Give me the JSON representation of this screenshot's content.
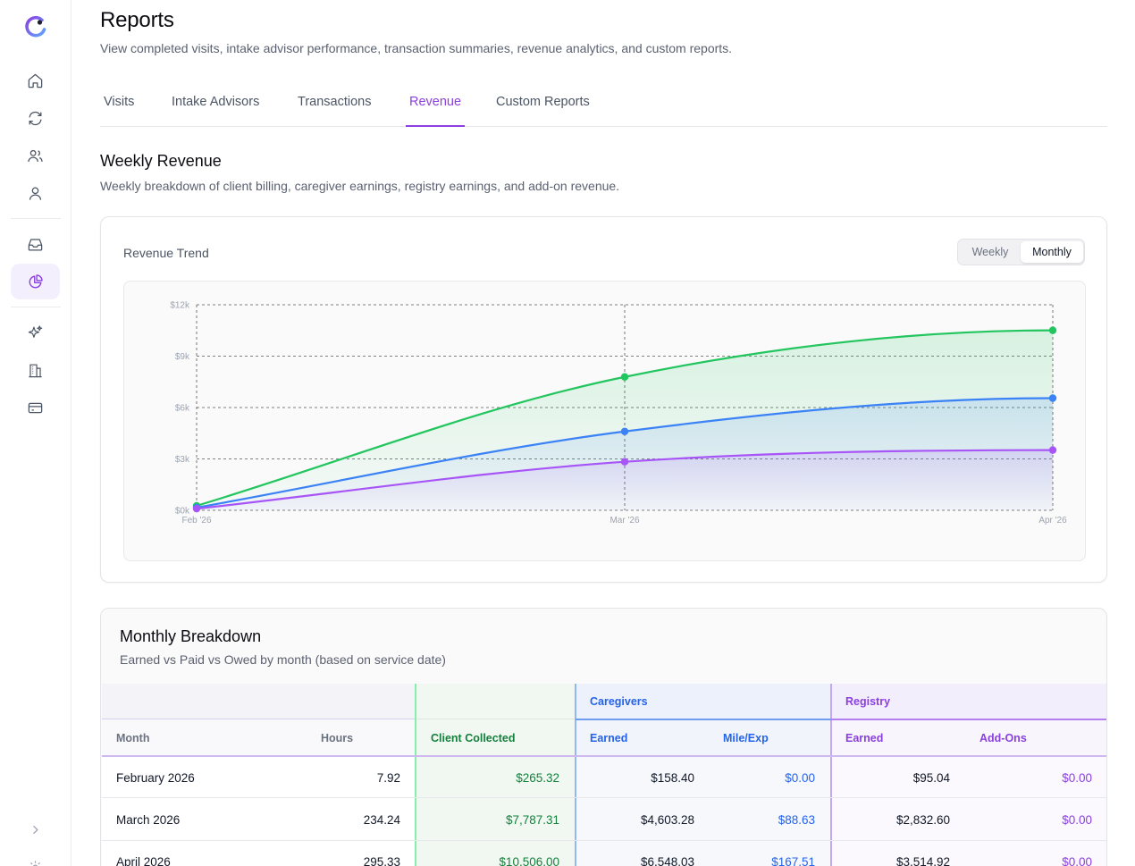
{
  "sidebar": {
    "items": [
      {
        "icon": "home-icon"
      },
      {
        "icon": "refresh-icon"
      },
      {
        "icon": "users-icon"
      },
      {
        "icon": "user-icon"
      },
      {
        "icon": "inbox-icon"
      },
      {
        "icon": "pie-chart-icon",
        "active": true
      },
      {
        "icon": "sparkles-icon"
      },
      {
        "icon": "building-icon"
      },
      {
        "icon": "credit-card-icon"
      }
    ],
    "expand_icon": "chevron-right-icon"
  },
  "header": {
    "title": "Reports",
    "subtitle": "View completed visits, intake advisor performance, transaction summaries, revenue analytics, and custom reports."
  },
  "tabs": [
    {
      "label": "Visits"
    },
    {
      "label": "Intake Advisors"
    },
    {
      "label": "Transactions"
    },
    {
      "label": "Revenue",
      "active": true
    },
    {
      "label": "Custom Reports"
    }
  ],
  "section": {
    "title": "Weekly Revenue",
    "subtitle": "Weekly breakdown of client billing, caregiver earnings, registry earnings, and add-on revenue."
  },
  "chart_card": {
    "title": "Revenue Trend",
    "toggle": {
      "weekly": "Weekly",
      "monthly": "Monthly",
      "selected": "Monthly"
    }
  },
  "chart_data": {
    "type": "area",
    "title": "Revenue Trend",
    "categories": [
      "Feb '26",
      "Mar '26",
      "Apr '26"
    ],
    "y_ticks": [
      "$0k",
      "$3k",
      "$6k",
      "$9k",
      "$12k"
    ],
    "ylim": [
      0,
      12000
    ],
    "grid": true,
    "series": [
      {
        "color": "#22c55e",
        "values": [
          265.32,
          7787.31,
          10506.0
        ]
      },
      {
        "color": "#3b82f6",
        "values": [
          158.4,
          4603.28,
          6548.03
        ]
      },
      {
        "color": "#a855f7",
        "values": [
          95.04,
          2832.6,
          3514.92
        ]
      }
    ]
  },
  "breakdown": {
    "title": "Monthly Breakdown",
    "subtitle": "Earned vs Paid vs Owed by month (based on service date)",
    "groups": {
      "caregivers": "Caregivers",
      "registry": "Registry"
    },
    "columns": {
      "month": "Month",
      "hours": "Hours",
      "client_collected": "Client Collected",
      "cg_earned": "Earned",
      "cg_mile": "Mile/Exp",
      "reg_earned": "Earned",
      "reg_addons": "Add-Ons"
    },
    "rows": [
      {
        "month": "February 2026",
        "hours": "7.92",
        "client": "$265.32",
        "cg_earned": "$158.40",
        "cg_mile": "$0.00",
        "reg_earned": "$95.04",
        "reg_addons": "$0.00"
      },
      {
        "month": "March 2026",
        "hours": "234.24",
        "client": "$7,787.31",
        "cg_earned": "$4,603.28",
        "cg_mile": "$88.63",
        "reg_earned": "$2,832.60",
        "reg_addons": "$0.00"
      },
      {
        "month": "April 2026",
        "hours": "295.33",
        "client": "$10,506.00",
        "cg_earned": "$6,548.03",
        "cg_mile": "$167.51",
        "reg_earned": "$3,514.92",
        "reg_addons": "$0.00"
      }
    ]
  }
}
